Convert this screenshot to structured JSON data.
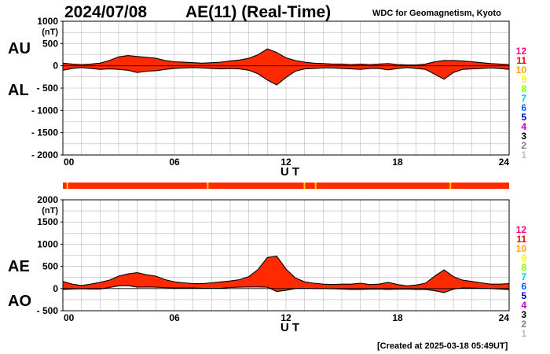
{
  "header": {
    "date": "2024/07/08",
    "title": "AE(11) (Real-Time)",
    "credit": "WDC for Geomagnetism, Kyoto"
  },
  "footer": {
    "created": "[Created at 2025-03-18 05:49UT]"
  },
  "legend": {
    "items": [
      {
        "label": "12",
        "color": "#ff0080"
      },
      {
        "label": "11",
        "color": "#ff0000"
      },
      {
        "label": "10",
        "color": "#ffa500"
      },
      {
        "label": "9",
        "color": "#ffff00"
      },
      {
        "label": "8",
        "color": "#80ff00"
      },
      {
        "label": "7",
        "color": "#00d0d0"
      },
      {
        "label": "6",
        "color": "#0060ff"
      },
      {
        "label": "5",
        "color": "#0000c0"
      },
      {
        "label": "4",
        "color": "#c000c0"
      },
      {
        "label": "3",
        "color": "#000000"
      },
      {
        "label": "2",
        "color": "#808080"
      },
      {
        "label": "1",
        "color": "#c0c0c0"
      }
    ]
  },
  "chart_data": [
    {
      "type": "area",
      "upper_label": "AU",
      "lower_label": "AL",
      "unit": "(nT)",
      "xlabel": "U T",
      "xlim": [
        0,
        24
      ],
      "ylim": [
        -2000,
        1000
      ],
      "y_ticks": [
        1000,
        500,
        0,
        -500,
        -1000,
        -1500,
        -2000
      ],
      "y_tick_labels": [
        "1000",
        "500",
        "0",
        "- 500",
        "- 1000",
        "- 1500",
        "- 2000"
      ],
      "x_ticks": [
        0,
        6,
        12,
        18,
        24
      ],
      "x_tick_labels": [
        "00",
        "06",
        "12",
        "18",
        "24"
      ],
      "grid": true,
      "fill_color": "#ff2a00",
      "x": [
        0,
        0.5,
        1,
        1.5,
        2,
        2.5,
        3,
        3.5,
        4,
        4.5,
        5,
        5.5,
        6,
        6.5,
        7,
        7.5,
        8,
        8.5,
        9,
        9.5,
        10,
        10.5,
        11,
        11.5,
        12,
        12.5,
        13,
        13.5,
        14,
        14.5,
        15,
        15.5,
        16,
        16.5,
        17,
        17.5,
        18,
        18.5,
        19,
        19.5,
        20,
        20.5,
        21,
        21.5,
        22,
        22.5,
        23,
        23.5,
        24
      ],
      "series": [
        {
          "name": "AU",
          "values": [
            60,
            40,
            30,
            40,
            60,
            120,
            200,
            230,
            210,
            190,
            170,
            120,
            90,
            80,
            70,
            60,
            70,
            80,
            110,
            130,
            170,
            250,
            380,
            300,
            180,
            120,
            80,
            60,
            50,
            40,
            40,
            30,
            40,
            30,
            40,
            50,
            30,
            20,
            20,
            40,
            90,
            120,
            120,
            110,
            90,
            70,
            50,
            40,
            30
          ]
        },
        {
          "name": "AL",
          "values": [
            -100,
            -60,
            -40,
            -60,
            -80,
            -70,
            -80,
            -100,
            -150,
            -120,
            -110,
            -80,
            -60,
            -50,
            -40,
            -50,
            -60,
            -70,
            -60,
            -70,
            -100,
            -180,
            -320,
            -430,
            -260,
            -120,
            -70,
            -60,
            -50,
            -50,
            -60,
            -70,
            -80,
            -60,
            -60,
            -90,
            -60,
            -40,
            -60,
            -80,
            -190,
            -300,
            -150,
            -80,
            -70,
            -60,
            -50,
            -60,
            -80
          ]
        }
      ]
    },
    {
      "type": "area",
      "upper_label": "AE",
      "lower_label": "AO",
      "unit": "(nT)",
      "xlabel": "U T",
      "xlim": [
        0,
        24
      ],
      "ylim": [
        -500,
        2000
      ],
      "y_ticks": [
        2000,
        1500,
        1000,
        500,
        0,
        -500
      ],
      "y_tick_labels": [
        "2000",
        "1500",
        "1000",
        "500",
        "0",
        "- 500"
      ],
      "x_ticks": [
        0,
        6,
        12,
        18,
        24
      ],
      "x_tick_labels": [
        "00",
        "06",
        "12",
        "18",
        "24"
      ],
      "grid": true,
      "fill_color": "#ff2a00",
      "x": [
        0,
        0.5,
        1,
        1.5,
        2,
        2.5,
        3,
        3.5,
        4,
        4.5,
        5,
        5.5,
        6,
        6.5,
        7,
        7.5,
        8,
        8.5,
        9,
        9.5,
        10,
        10.5,
        11,
        11.5,
        12,
        12.5,
        13,
        13.5,
        14,
        14.5,
        15,
        15.5,
        16,
        16.5,
        17,
        17.5,
        18,
        18.5,
        19,
        19.5,
        20,
        20.5,
        21,
        21.5,
        22,
        22.5,
        23,
        23.5,
        24
      ],
      "series": [
        {
          "name": "AE",
          "values": [
            160,
            100,
            70,
            100,
            140,
            190,
            280,
            330,
            360,
            310,
            280,
            200,
            150,
            130,
            110,
            110,
            130,
            150,
            170,
            200,
            270,
            430,
            700,
            730,
            440,
            240,
            150,
            120,
            100,
            90,
            100,
            100,
            120,
            90,
            100,
            140,
            90,
            60,
            80,
            120,
            280,
            420,
            270,
            190,
            160,
            130,
            100,
            100,
            110
          ]
        },
        {
          "name": "AO",
          "values": [
            -20,
            -10,
            -5,
            -10,
            -10,
            25,
            60,
            65,
            30,
            35,
            30,
            20,
            15,
            15,
            15,
            5,
            5,
            5,
            25,
            30,
            35,
            35,
            30,
            -65,
            -40,
            0,
            5,
            0,
            0,
            -5,
            -10,
            -20,
            -20,
            -15,
            -10,
            -20,
            -15,
            -10,
            -20,
            -20,
            -50,
            -90,
            -15,
            15,
            10,
            5,
            0,
            -10,
            -25
          ]
        }
      ]
    }
  ],
  "status_bar": {
    "color": "#ff2a00",
    "marks": [
      {
        "t": 0.2,
        "color": "#ffd000"
      },
      {
        "t": 7.75,
        "color": "#ffd000"
      },
      {
        "t": 12.95,
        "color": "#ffd000"
      },
      {
        "t": 13.55,
        "color": "#ffd000"
      },
      {
        "t": 20.8,
        "color": "#ffd000"
      }
    ]
  }
}
